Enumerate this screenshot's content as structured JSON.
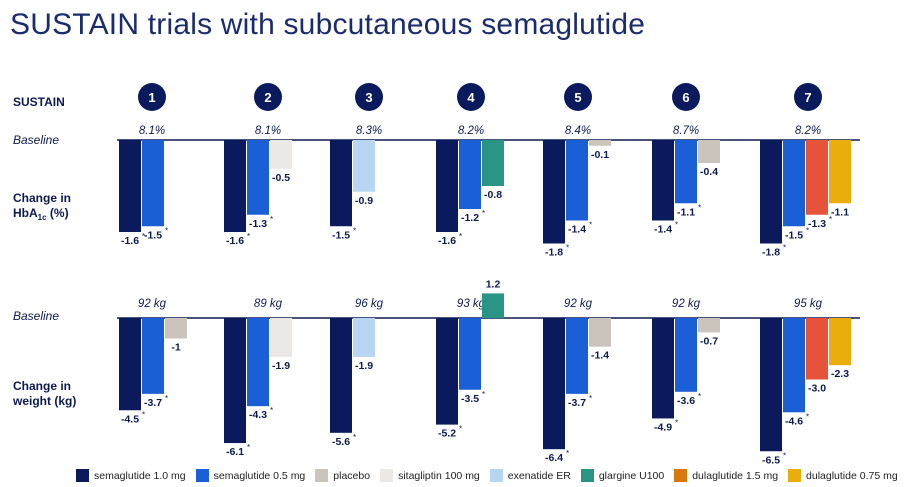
{
  "title": "SUSTAIN trials with subcutaneous semaglutide",
  "labels": {
    "trials": "SUSTAIN",
    "baseline": "Baseline",
    "hba1c": "Change in HbA",
    "hba1c_sub": "1c",
    "hba1c_unit": " (%)",
    "weight_line1": "Change in",
    "weight_line2": "weight (kg)"
  },
  "colors": {
    "sema10": "#0b1a5c",
    "sema05": "#1a5fd6",
    "placebo": "#cbc4bd",
    "sitagliptin": "#ebe8e5",
    "exenatide": "#b8d6f2",
    "glargine": "#2a9485",
    "dula15": "#e5533a",
    "dula075": "#e9ae0c",
    "dula15_legend": "#d9770f"
  },
  "legend": [
    {
      "label": "semaglutide 1.0 mg",
      "color": "sema10"
    },
    {
      "label": "semaglutide 0.5 mg",
      "color": "sema05"
    },
    {
      "label": "placebo",
      "color": "placebo"
    },
    {
      "label": "sitagliptin 100 mg",
      "color": "sitagliptin"
    },
    {
      "label": "exenatide ER",
      "color": "exenatide"
    },
    {
      "label": "glargine U100",
      "color": "glargine"
    },
    {
      "label": "dulaglutide 1.5 mg",
      "color": "dula15_legend"
    },
    {
      "label": "dulaglutide 0.75 mg",
      "color": "dula075"
    }
  ],
  "chart_data": [
    {
      "type": "bar",
      "title": "Change in HbA1c (%)",
      "categories": [
        "1",
        "2",
        "3",
        "4",
        "5",
        "6",
        "7"
      ],
      "baselines": [
        "8.1%",
        "8.1%",
        "8.3%",
        "8.2%",
        "8.4%",
        "8.7%",
        "8.2%"
      ],
      "trials": [
        {
          "bars": [
            {
              "s": "sema10",
              "v": -1.6,
              "label": "-1.6",
              "star": true
            },
            {
              "s": "sema05",
              "v": -1.5,
              "label": "-1.5",
              "star": true
            }
          ]
        },
        {
          "bars": [
            {
              "s": "sema10",
              "v": -1.6,
              "label": "-1.6",
              "star": true
            },
            {
              "s": "sema05",
              "v": -1.3,
              "label": "-1.3",
              "star": true
            },
            {
              "s": "sitagliptin",
              "v": -0.5,
              "label": "-0.5",
              "star": false
            }
          ]
        },
        {
          "bars": [
            {
              "s": "sema10",
              "v": -1.5,
              "label": "-1.5",
              "star": true
            },
            {
              "s": "exenatide",
              "v": -0.9,
              "label": "-0.9",
              "star": false
            }
          ]
        },
        {
          "bars": [
            {
              "s": "sema10",
              "v": -1.6,
              "label": "-1.6",
              "star": true
            },
            {
              "s": "sema05",
              "v": -1.2,
              "label": "-1.2",
              "star": true
            },
            {
              "s": "glargine",
              "v": -0.8,
              "label": "-0.8",
              "star": false
            }
          ]
        },
        {
          "bars": [
            {
              "s": "sema10",
              "v": -1.8,
              "label": "-1.8",
              "star": true
            },
            {
              "s": "sema05",
              "v": -1.4,
              "label": "-1.4",
              "star": true
            },
            {
              "s": "placebo",
              "v": -0.1,
              "label": "-0.1",
              "star": false
            }
          ]
        },
        {
          "bars": [
            {
              "s": "sema10",
              "v": -1.4,
              "label": "-1.4",
              "star": true
            },
            {
              "s": "sema05",
              "v": -1.1,
              "label": "-1.1",
              "star": true
            },
            {
              "s": "placebo",
              "v": -0.4,
              "label": "-0.4",
              "star": false
            }
          ]
        },
        {
          "bars": [
            {
              "s": "sema10",
              "v": -1.8,
              "label": "-1.8",
              "star": true
            },
            {
              "s": "sema05",
              "v": -1.5,
              "label": "-1.5",
              "star": true
            },
            {
              "s": "dula15",
              "v": -1.3,
              "label": "-1.3",
              "star": true
            },
            {
              "s": "dula075",
              "v": -1.1,
              "label": "-1.1",
              "star": false
            }
          ]
        }
      ]
    },
    {
      "type": "bar",
      "title": "Change in weight (kg)",
      "categories": [
        "1",
        "2",
        "3",
        "4",
        "5",
        "6",
        "7"
      ],
      "baselines": [
        "92 kg",
        "89 kg",
        "96 kg",
        "93 kg",
        "92 kg",
        "92 kg",
        "95 kg"
      ],
      "trials": [
        {
          "bars": [
            {
              "s": "sema10",
              "v": -4.5,
              "label": "-4.5",
              "star": true
            },
            {
              "s": "sema05",
              "v": -3.7,
              "label": "-3.7",
              "star": true
            },
            {
              "s": "placebo",
              "v": -1.0,
              "label": "-1",
              "star": false
            }
          ]
        },
        {
          "bars": [
            {
              "s": "sema10",
              "v": -6.1,
              "label": "-6.1",
              "star": true
            },
            {
              "s": "sema05",
              "v": -4.3,
              "label": "-4.3",
              "star": true
            },
            {
              "s": "sitagliptin",
              "v": -1.9,
              "label": "-1.9",
              "star": false
            }
          ]
        },
        {
          "bars": [
            {
              "s": "sema10",
              "v": -5.6,
              "label": "-5.6",
              "star": true
            },
            {
              "s": "exenatide",
              "v": -1.9,
              "label": "-1.9",
              "star": false
            }
          ]
        },
        {
          "bars": [
            {
              "s": "sema10",
              "v": -5.2,
              "label": "-5.2",
              "star": true
            },
            {
              "s": "sema05",
              "v": -3.5,
              "label": "-3.5",
              "star": true
            },
            {
              "s": "glargine",
              "v": 1.2,
              "label": "1.2",
              "star": false
            }
          ]
        },
        {
          "bars": [
            {
              "s": "sema10",
              "v": -6.4,
              "label": "-6.4",
              "star": true
            },
            {
              "s": "sema05",
              "v": -3.7,
              "label": "-3.7",
              "star": true
            },
            {
              "s": "placebo",
              "v": -1.4,
              "label": "-1.4",
              "star": false
            }
          ]
        },
        {
          "bars": [
            {
              "s": "sema10",
              "v": -4.9,
              "label": "-4.9",
              "star": true
            },
            {
              "s": "sema05",
              "v": -3.6,
              "label": "-3.6",
              "star": true
            },
            {
              "s": "placebo",
              "v": -0.7,
              "label": "-0.7",
              "star": false
            }
          ]
        },
        {
          "bars": [
            {
              "s": "sema10",
              "v": -6.5,
              "label": "-6.5",
              "star": true
            },
            {
              "s": "sema05",
              "v": -4.6,
              "label": "-4.6",
              "star": true
            },
            {
              "s": "dula15",
              "v": -3.0,
              "label": "-3.0",
              "star": false
            },
            {
              "s": "dula075",
              "v": -2.3,
              "label": "-2.3",
              "star": false
            }
          ]
        }
      ]
    }
  ]
}
